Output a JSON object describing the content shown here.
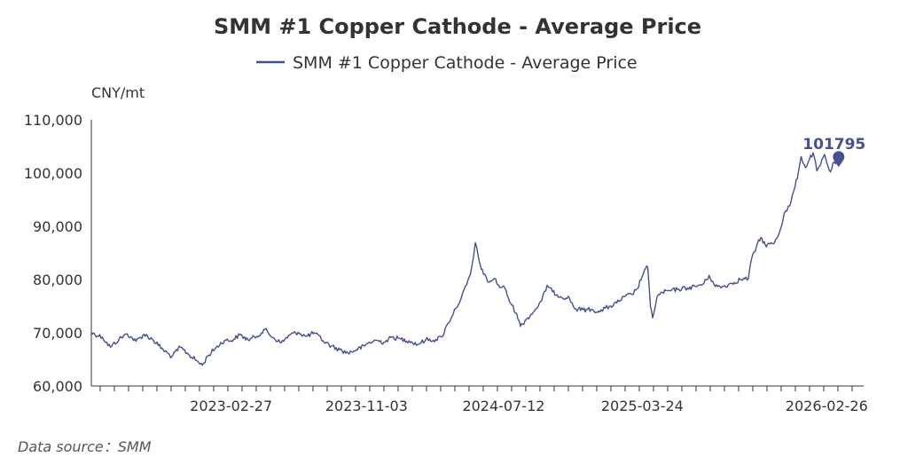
{
  "chart_data": {
    "type": "line",
    "title": "SMM #1 Copper Cathode - Average Price",
    "ylabel": "CNY/mt",
    "xlabel": "",
    "ylim": [
      60000,
      110000
    ],
    "yticks": [
      60000,
      70000,
      80000,
      90000,
      100000,
      110000
    ],
    "ytick_labels": [
      "60,000",
      "70,000",
      "80,000",
      "90,000",
      "100,000",
      "110,000"
    ],
    "xlim": [
      "2022-06-15",
      "2026-05-05"
    ],
    "xtick_dates": [
      "2023-02-27",
      "2023-11-03",
      "2024-07-12",
      "2025-03-24",
      "2026-02-26"
    ],
    "xtick_labels": [
      "2023-02-27",
      "2023-11-03",
      "2024-07-12",
      "2025-03-24",
      "2026-02-26"
    ],
    "legend": "top-center",
    "last_value_label": "101795",
    "series": [
      {
        "name": "SMM #1 Copper Cathode - Average Price",
        "color": "#44508f",
        "points": [
          [
            "2022-06-15",
            70000
          ],
          [
            "2022-07-05",
            69200
          ],
          [
            "2022-07-20",
            67300
          ],
          [
            "2022-08-05",
            68800
          ],
          [
            "2022-08-20",
            69800
          ],
          [
            "2022-09-05",
            68400
          ],
          [
            "2022-09-20",
            69700
          ],
          [
            "2022-10-05",
            68800
          ],
          [
            "2022-10-25",
            66800
          ],
          [
            "2022-11-10",
            65500
          ],
          [
            "2022-11-25",
            67300
          ],
          [
            "2022-12-10",
            66000
          ],
          [
            "2022-12-25",
            64800
          ],
          [
            "2023-01-05",
            63900
          ],
          [
            "2023-01-15",
            65600
          ],
          [
            "2023-01-30",
            67200
          ],
          [
            "2023-02-15",
            68600
          ],
          [
            "2023-02-27",
            68500
          ],
          [
            "2023-03-15",
            69600
          ],
          [
            "2023-03-30",
            68700
          ],
          [
            "2023-04-15",
            69300
          ],
          [
            "2023-04-30",
            70600
          ],
          [
            "2023-05-15",
            69100
          ],
          [
            "2023-05-30",
            68100
          ],
          [
            "2023-06-15",
            69600
          ],
          [
            "2023-06-30",
            70100
          ],
          [
            "2023-07-15",
            69300
          ],
          [
            "2023-07-30",
            70000
          ],
          [
            "2023-08-15",
            68500
          ],
          [
            "2023-08-30",
            67500
          ],
          [
            "2023-09-15",
            66800
          ],
          [
            "2023-09-30",
            66200
          ],
          [
            "2023-10-15",
            66800
          ],
          [
            "2023-10-30",
            67500
          ],
          [
            "2023-11-03",
            67900
          ],
          [
            "2023-11-20",
            68600
          ],
          [
            "2023-12-05",
            68200
          ],
          [
            "2023-12-20",
            69200
          ],
          [
            "2024-01-05",
            68800
          ],
          [
            "2024-01-20",
            68500
          ],
          [
            "2024-02-05",
            67800
          ],
          [
            "2024-02-20",
            68700
          ],
          [
            "2024-03-05",
            68600
          ],
          [
            "2024-03-20",
            69200
          ],
          [
            "2024-04-01",
            71800
          ],
          [
            "2024-04-15",
            74600
          ],
          [
            "2024-04-25",
            76500
          ],
          [
            "2024-05-05",
            79000
          ],
          [
            "2024-05-12",
            81000
          ],
          [
            "2024-05-18",
            84500
          ],
          [
            "2024-05-21",
            86900
          ],
          [
            "2024-05-28",
            83500
          ],
          [
            "2024-06-05",
            81000
          ],
          [
            "2024-06-15",
            79500
          ],
          [
            "2024-06-25",
            80200
          ],
          [
            "2024-07-05",
            78500
          ],
          [
            "2024-07-12",
            78800
          ],
          [
            "2024-07-25",
            75500
          ],
          [
            "2024-08-05",
            73600
          ],
          [
            "2024-08-12",
            71200
          ],
          [
            "2024-08-25",
            72800
          ],
          [
            "2024-09-05",
            73900
          ],
          [
            "2024-09-20",
            76000
          ],
          [
            "2024-09-30",
            78900
          ],
          [
            "2024-10-10",
            77700
          ],
          [
            "2024-10-25",
            76800
          ],
          [
            "2024-11-10",
            76500
          ],
          [
            "2024-11-20",
            74500
          ],
          [
            "2024-12-05",
            74300
          ],
          [
            "2024-12-20",
            74400
          ],
          [
            "2025-01-05",
            73900
          ],
          [
            "2025-01-15",
            74600
          ],
          [
            "2025-01-25",
            75000
          ],
          [
            "2025-02-05",
            75600
          ],
          [
            "2025-02-20",
            76800
          ],
          [
            "2025-03-05",
            77200
          ],
          [
            "2025-03-15",
            78300
          ],
          [
            "2025-03-24",
            80700
          ],
          [
            "2025-03-28",
            81800
          ],
          [
            "2025-04-03",
            82300
          ],
          [
            "2025-04-08",
            74900
          ],
          [
            "2025-04-12",
            72800
          ],
          [
            "2025-04-20",
            76700
          ],
          [
            "2025-04-30",
            77600
          ],
          [
            "2025-05-15",
            77900
          ],
          [
            "2025-05-30",
            78200
          ],
          [
            "2025-06-15",
            78400
          ],
          [
            "2025-06-30",
            78700
          ],
          [
            "2025-07-15",
            79200
          ],
          [
            "2025-07-25",
            80800
          ],
          [
            "2025-08-05",
            78700
          ],
          [
            "2025-08-20",
            78700
          ],
          [
            "2025-09-05",
            79300
          ],
          [
            "2025-09-20",
            80000
          ],
          [
            "2025-10-05",
            80200
          ],
          [
            "2025-10-10",
            83500
          ],
          [
            "2025-10-20",
            86200
          ],
          [
            "2025-10-28",
            87900
          ],
          [
            "2025-11-05",
            86500
          ],
          [
            "2025-11-20",
            86700
          ],
          [
            "2025-12-01",
            88800
          ],
          [
            "2025-12-10",
            92400
          ],
          [
            "2025-12-20",
            93800
          ],
          [
            "2025-12-30",
            97500
          ],
          [
            "2026-01-05",
            100200
          ],
          [
            "2026-01-10",
            103100
          ],
          [
            "2026-01-18",
            101000
          ],
          [
            "2026-01-25",
            102500
          ],
          [
            "2026-02-01",
            103800
          ],
          [
            "2026-02-08",
            100400
          ],
          [
            "2026-02-15",
            101600
          ],
          [
            "2026-02-22",
            103500
          ],
          [
            "2026-02-26",
            102000
          ],
          [
            "2026-03-05",
            100200
          ],
          [
            "2026-03-12",
            102100
          ],
          [
            "2026-03-20",
            101795
          ]
        ]
      }
    ]
  },
  "footer": {
    "source_text": "Data source：SMM"
  }
}
